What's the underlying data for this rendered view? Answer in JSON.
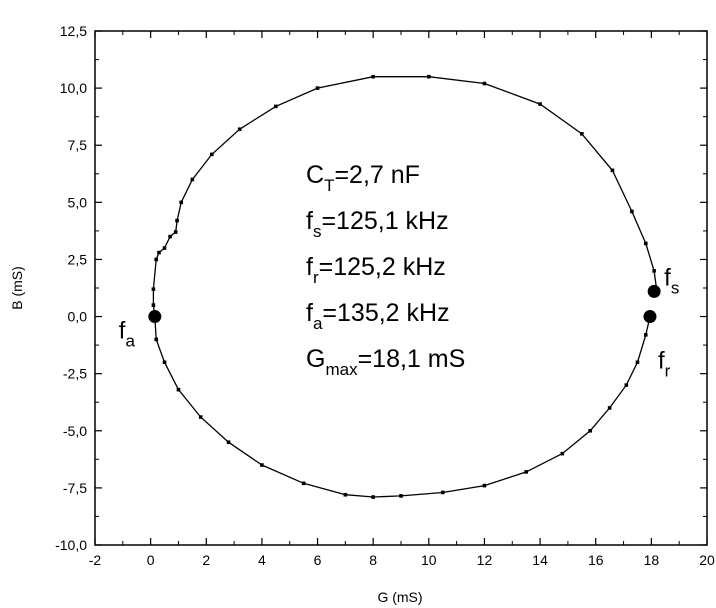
{
  "chart_data": {
    "type": "scatter",
    "title": "",
    "xlabel": "G (mS)",
    "ylabel": "B (mS)",
    "xlim": [
      -2,
      20
    ],
    "ylim": [
      -10,
      12.5
    ],
    "x_ticks": [
      -2,
      0,
      2,
      4,
      6,
      8,
      10,
      12,
      14,
      16,
      18,
      20
    ],
    "y_ticks": [
      -10,
      -7.5,
      -5,
      -2.5,
      0,
      2.5,
      5,
      7.5,
      10,
      12.5
    ],
    "x_tick_labels": [
      "-2",
      "0",
      "2",
      "4",
      "6",
      "8",
      "10",
      "12",
      "14",
      "16",
      "18",
      "20"
    ],
    "y_tick_labels": [
      "-10,0",
      "-7,5",
      "-5,0",
      "-2,5",
      "0,0",
      "2,5",
      "5,0",
      "7,5",
      "10,0",
      "12,5"
    ],
    "grid": false,
    "series": [
      {
        "points": [
          [
            18.2,
            1.1
          ],
          [
            18.1,
            2.0
          ],
          [
            17.8,
            3.2
          ],
          [
            17.3,
            4.6
          ],
          [
            16.6,
            6.4
          ],
          [
            15.5,
            8.0
          ],
          [
            14.0,
            9.3
          ],
          [
            12.0,
            10.2
          ],
          [
            10.0,
            10.5
          ],
          [
            8.0,
            10.5
          ],
          [
            6.0,
            10.0
          ],
          [
            4.5,
            9.2
          ],
          [
            3.2,
            8.2
          ],
          [
            2.2,
            7.1
          ],
          [
            1.5,
            6.0
          ],
          [
            1.1,
            5.0
          ],
          [
            0.95,
            4.2
          ],
          [
            0.9,
            3.7
          ],
          [
            0.7,
            3.5
          ],
          [
            0.5,
            3.0
          ],
          [
            0.3,
            2.8
          ],
          [
            0.2,
            2.5
          ],
          [
            0.1,
            1.2
          ],
          [
            0.1,
            0.5
          ],
          [
            0.15,
            0.0
          ],
          [
            0.2,
            -1.0
          ],
          [
            0.5,
            -2.0
          ],
          [
            1.0,
            -3.2
          ],
          [
            1.8,
            -4.4
          ],
          [
            2.8,
            -5.5
          ],
          [
            4.0,
            -6.5
          ],
          [
            5.5,
            -7.3
          ],
          [
            7.0,
            -7.8
          ],
          [
            8.0,
            -7.9
          ],
          [
            9.0,
            -7.85
          ],
          [
            10.5,
            -7.7
          ],
          [
            12.0,
            -7.4
          ],
          [
            13.5,
            -6.8
          ],
          [
            14.8,
            -6.0
          ],
          [
            15.8,
            -5.0
          ],
          [
            16.5,
            -4.0
          ],
          [
            17.1,
            -3.0
          ],
          [
            17.5,
            -2.0
          ],
          [
            17.8,
            -0.8
          ],
          [
            17.95,
            0.0
          ]
        ]
      }
    ],
    "markers": [
      {
        "x": 0.15,
        "y": 0.0,
        "label": "f",
        "sub": "a"
      },
      {
        "x": 18.1,
        "y": 1.1,
        "label": "f",
        "sub": "s"
      },
      {
        "x": 17.95,
        "y": 0.0,
        "label": "f",
        "sub": "r"
      }
    ],
    "annotation_lines": [
      {
        "main": "C",
        "sub": "T",
        "rest": "=2,7 nF"
      },
      {
        "main": "f",
        "sub": "s",
        "rest": "=125,1 kHz"
      },
      {
        "main": "f",
        "sub": "r",
        "rest": "=125,2 kHz"
      },
      {
        "main": "f",
        "sub": "a",
        "rest": "=135,2 kHz"
      },
      {
        "main": "G",
        "sub": "max",
        "rest": "=18,1 mS"
      }
    ]
  }
}
